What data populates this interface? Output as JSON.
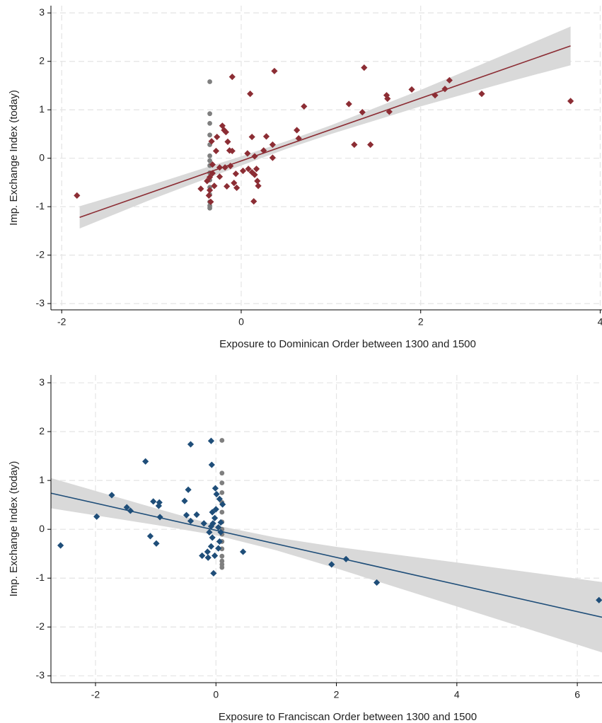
{
  "chart_data": [
    {
      "type": "scatter",
      "xlabel": "Exposure to Dominican Order between 1300 and 1500",
      "ylabel": "Imp. Exchange Index (today)",
      "xlim": [
        -2.12,
        4.02
      ],
      "ylim": [
        -3.13,
        3.15
      ],
      "xticks": [
        -2,
        0,
        2,
        4
      ],
      "yticks": [
        -3,
        -2,
        -1,
        0,
        1,
        2,
        3
      ],
      "grid": true,
      "series": [
        {
          "color": "#7f7f7f",
          "marker": "circle",
          "x": [
            -0.35,
            -0.35,
            -0.35,
            -0.35,
            -0.35,
            -0.35,
            -0.35,
            -0.35,
            -0.35,
            -0.35,
            -0.35,
            -0.35,
            -0.35,
            -0.35,
            -0.35
          ],
          "values": [
            1.58,
            0.92,
            0.72,
            0.48,
            0.28,
            0.05,
            -0.05,
            -0.15,
            -0.3,
            -0.45,
            -0.6,
            -0.75,
            -0.9,
            -0.98,
            -1.03
          ]
        },
        {
          "color": "#8c2d34",
          "marker": "diamond",
          "x": [
            -1.83,
            -0.1,
            0.1,
            0.37,
            1.37,
            3.67,
            2.68,
            2.32,
            2.27,
            2.16,
            1.9,
            1.62,
            1.63,
            1.65,
            1.35,
            1.2,
            0.7,
            1.26,
            1.44,
            0.62,
            0.64,
            0.28,
            0.12,
            0.35,
            0.25,
            0.15,
            0.07,
            0.35,
            -0.13,
            -0.1,
            -0.15,
            -0.19,
            -0.21,
            -0.17,
            -0.27,
            -0.33,
            -0.28,
            -0.32,
            -0.24,
            -0.18,
            -0.12,
            -0.06,
            0.02,
            0.08,
            0.12,
            0.15,
            0.17,
            0.18,
            0.19,
            0.14,
            -0.05,
            -0.08,
            -0.16,
            -0.24,
            -0.3,
            -0.45,
            -0.36,
            -0.34,
            -0.35,
            -0.32,
            -0.38,
            -0.35
          ],
          "values": [
            -0.77,
            1.68,
            1.33,
            1.8,
            1.87,
            1.18,
            1.33,
            1.61,
            1.43,
            1.3,
            1.42,
            1.3,
            1.23,
            0.96,
            0.95,
            1.12,
            1.07,
            0.28,
            0.28,
            0.58,
            0.41,
            0.45,
            0.44,
            0.28,
            0.16,
            0.04,
            0.1,
            0.01,
            0.16,
            0.15,
            0.34,
            0.58,
            0.67,
            0.54,
            0.44,
            0.35,
            0.15,
            -0.13,
            -0.19,
            -0.19,
            -0.16,
            -0.32,
            -0.26,
            -0.22,
            -0.29,
            -0.34,
            -0.22,
            -0.47,
            -0.57,
            -0.89,
            -0.61,
            -0.51,
            -0.58,
            -0.38,
            -0.57,
            -0.63,
            -0.77,
            -0.9,
            -0.39,
            -0.31,
            -0.47,
            -0.66
          ]
        }
      ],
      "band": {
        "color": "#d9d9d9",
        "x": [
          -1.8,
          -1,
          0,
          0.5,
          1,
          2,
          3,
          3.67
        ],
        "lower": [
          -1.45,
          -0.85,
          -0.15,
          0.19,
          0.5,
          1.07,
          1.59,
          1.92
        ],
        "upper": [
          -0.99,
          -0.55,
          0.04,
          0.35,
          0.68,
          1.41,
          2.19,
          2.72
        ]
      },
      "fit": {
        "color": "#8c2d34",
        "x": [
          -1.8,
          3.67
        ],
        "values": [
          -1.22,
          2.32
        ]
      }
    },
    {
      "type": "scatter",
      "xlabel": "Exposure to Franciscan Order between 1300 and 1500",
      "ylabel": "Imp. Exchange Index (today)",
      "xlim": [
        -2.74,
        6.41
      ],
      "ylim": [
        -3.14,
        3.16
      ],
      "xticks": [
        -2,
        0,
        2,
        4,
        6
      ],
      "yticks": [
        -3,
        -2,
        -1,
        0,
        1,
        2,
        3
      ],
      "grid": true,
      "series": [
        {
          "color": "#7f7f7f",
          "marker": "circle",
          "x": [
            0.1,
            0.1,
            0.1,
            0.1,
            0.1,
            0.1,
            0.1,
            0.1,
            0.1,
            0.1,
            0.1,
            0.1,
            0.1,
            0.1,
            0.1
          ],
          "values": [
            1.82,
            1.15,
            0.95,
            0.75,
            0.55,
            0.35,
            0.15,
            0.0,
            -0.1,
            -0.25,
            -0.4,
            -0.55,
            -0.65,
            -0.72,
            -0.78
          ]
        },
        {
          "color": "#1f4e79",
          "marker": "diamond",
          "x": [
            -2.58,
            -1.98,
            -1.73,
            -1.48,
            -1.42,
            -1.17,
            -1.04,
            -0.94,
            -0.95,
            -0.93,
            -1.09,
            -0.99,
            -0.42,
            -0.08,
            -0.07,
            -0.46,
            -0.52,
            -0.49,
            -0.42,
            -0.32,
            -0.2,
            -0.08,
            -0.01,
            0.01,
            0.06,
            0.11,
            -0.06,
            -0.02,
            -0.11,
            -0.06,
            -0.08,
            -0.14,
            -0.23,
            -0.13,
            -0.02,
            0.04,
            0.06,
            0.08,
            -0.04,
            0.45,
            1.92,
            2.16,
            2.67,
            6.36,
            -0.05,
            0.04,
            0.0,
            0.08
          ],
          "values": [
            -0.33,
            0.26,
            0.7,
            0.45,
            0.38,
            1.39,
            0.57,
            0.55,
            0.48,
            0.25,
            -0.14,
            -0.29,
            1.74,
            1.81,
            1.32,
            0.81,
            0.58,
            0.29,
            0.17,
            0.3,
            0.12,
            0.06,
            0.84,
            0.72,
            0.62,
            0.51,
            0.35,
            0.23,
            -0.06,
            -0.17,
            -0.35,
            -0.46,
            -0.54,
            -0.58,
            -0.54,
            -0.39,
            -0.25,
            -0.06,
            -0.9,
            -0.46,
            -0.72,
            -0.61,
            -1.09,
            -1.45,
            0.12,
            0.04,
            0.41,
            0.14
          ]
        }
      ],
      "band": {
        "color": "#d9d9d9",
        "x": [
          -2.74,
          -1,
          0,
          1,
          2,
          4,
          6.41
        ],
        "lower": [
          0.43,
          0.09,
          -0.12,
          -0.43,
          -0.8,
          -1.58,
          -2.52
        ],
        "upper": [
          1.05,
          0.43,
          0.08,
          -0.17,
          -0.36,
          -0.68,
          -1.08
        ]
      },
      "fit": {
        "color": "#1f4e79",
        "x": [
          -2.74,
          6.41
        ],
        "values": [
          0.74,
          -1.8
        ]
      }
    }
  ]
}
